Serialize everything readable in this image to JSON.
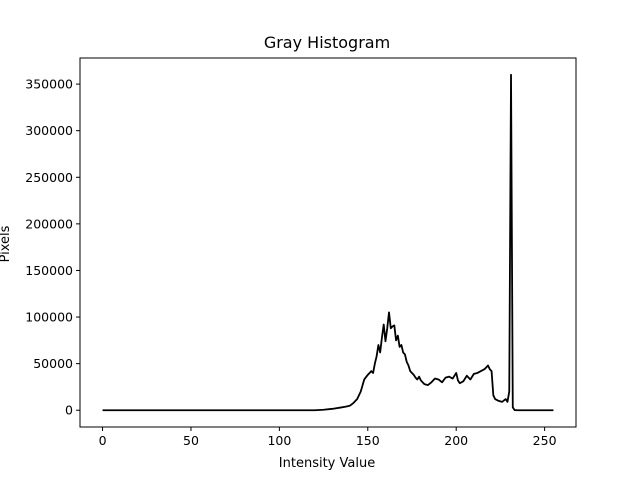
{
  "chart_data": {
    "type": "line",
    "title": "Gray Histogram",
    "xlabel": "Intensity Value",
    "ylabel": "Pixels",
    "xlim": [
      -12.75,
      267.75
    ],
    "ylim": [
      -18000,
      378000
    ],
    "xticks": [
      0,
      50,
      100,
      150,
      200,
      250
    ],
    "yticks": [
      0,
      50000,
      100000,
      150000,
      200000,
      250000,
      300000,
      350000
    ],
    "xtick_labels": [
      "0",
      "50",
      "100",
      "150",
      "200",
      "250"
    ],
    "ytick_labels": [
      "0",
      "50000",
      "100000",
      "150000",
      "200000",
      "250000",
      "300000",
      "350000"
    ],
    "grid": false,
    "legend": "none",
    "line_color": "#000000",
    "series": [
      {
        "x": [
          0,
          120,
          125,
          130,
          135,
          138,
          140,
          142,
          144,
          146,
          148,
          150,
          152,
          153,
          154,
          155,
          156,
          157,
          158,
          159,
          160,
          161,
          162,
          163,
          164,
          165,
          166,
          167,
          168,
          169,
          170,
          171,
          172,
          173,
          174,
          175,
          176,
          177,
          178,
          179,
          180,
          182,
          184,
          186,
          188,
          190,
          192,
          194,
          196,
          198,
          200,
          201,
          202,
          204,
          206,
          208,
          210,
          212,
          214,
          216,
          218,
          219,
          220,
          221,
          222,
          224,
          226,
          228,
          229,
          230,
          231,
          232,
          233,
          235,
          255
        ],
        "y": [
          0,
          0,
          500,
          1500,
          3000,
          4000,
          5000,
          8000,
          12000,
          20000,
          33000,
          38000,
          42000,
          40000,
          50000,
          58000,
          70000,
          62000,
          78000,
          92000,
          74000,
          88000,
          105000,
          88000,
          90000,
          91000,
          75000,
          80000,
          68000,
          70000,
          62000,
          60000,
          52000,
          48000,
          42000,
          40000,
          38000,
          35000,
          33000,
          36000,
          32000,
          28000,
          27000,
          30000,
          34000,
          33000,
          30000,
          35000,
          36000,
          34000,
          40000,
          32000,
          29000,
          31000,
          37000,
          33000,
          39000,
          40000,
          42000,
          44000,
          48000,
          44000,
          42000,
          16000,
          12000,
          10000,
          9000,
          12000,
          9000,
          20000,
          360000,
          3000,
          200,
          0,
          0
        ]
      }
    ]
  }
}
